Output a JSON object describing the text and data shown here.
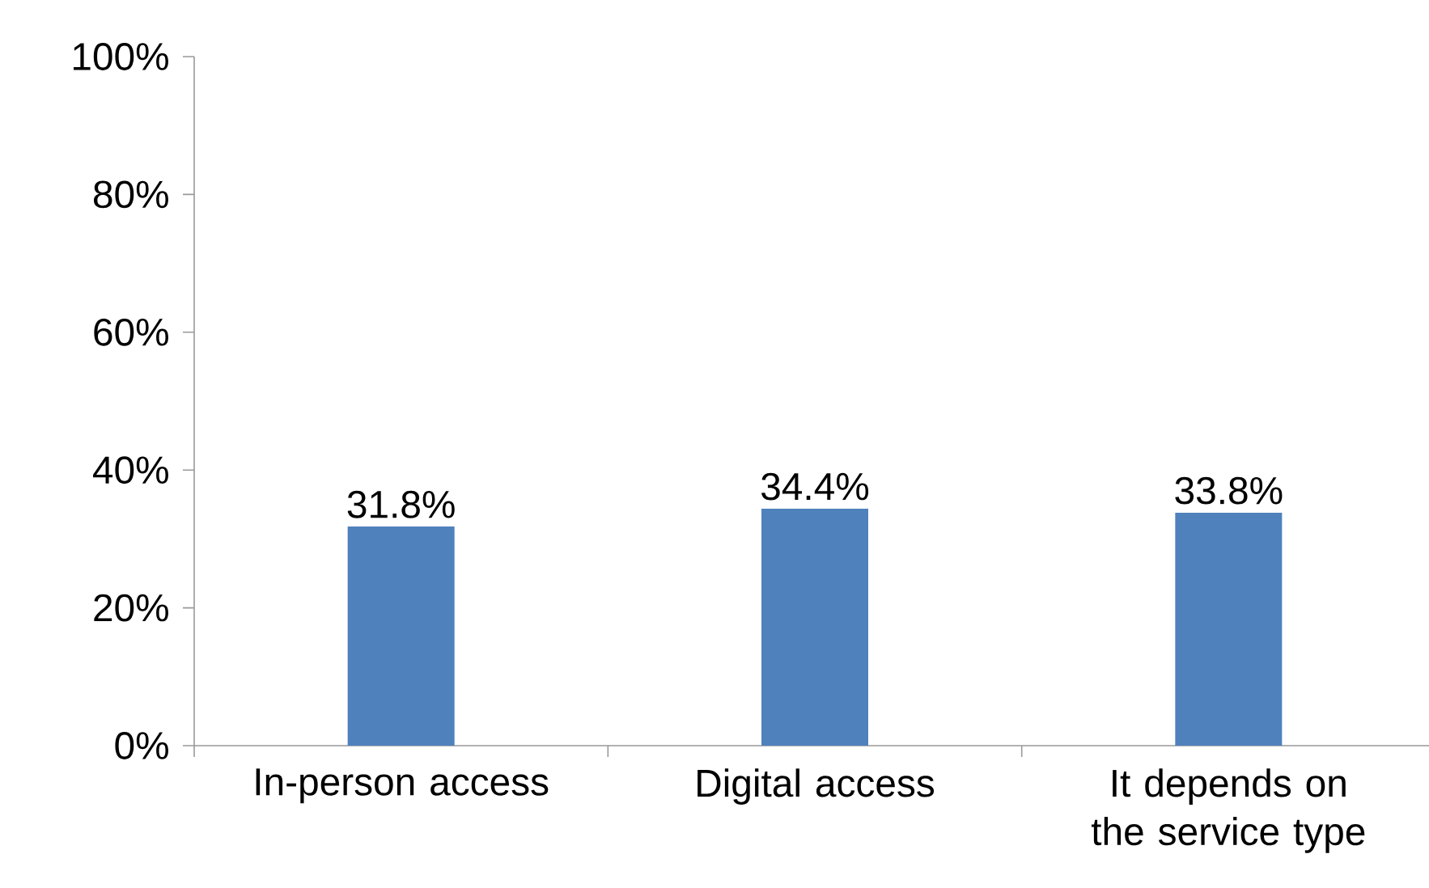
{
  "chart_data": {
    "type": "bar",
    "categories": [
      "In-person access",
      "Digital access",
      "It depends on the service type"
    ],
    "values": [
      31.8,
      34.4,
      33.8
    ],
    "value_labels": [
      "31.8%",
      "34.4%",
      "33.8%"
    ],
    "color": "#4f81bd",
    "ylim": [
      0,
      100
    ],
    "yticks": [
      {
        "value": 0,
        "label": "0%"
      },
      {
        "value": 20,
        "label": "20%"
      },
      {
        "value": 40,
        "label": "40%"
      },
      {
        "value": 60,
        "label": "60%"
      },
      {
        "value": 80,
        "label": "80%"
      },
      {
        "value": 100,
        "label": "100%"
      }
    ],
    "grid": false
  }
}
